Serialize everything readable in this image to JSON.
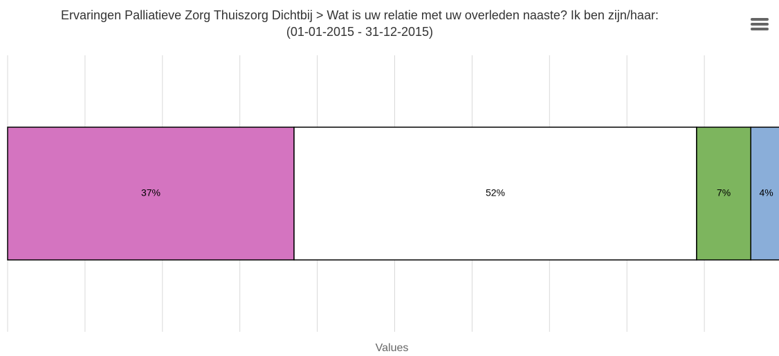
{
  "chart_data": {
    "type": "stacked_percent_bar",
    "title": "Ervaringen Palliatieve Zorg Thuiszorg Dichtbij > Wat is uw relatie met uw overleden naaste? Ik ben zijn/haar:",
    "subtitle": "(01-01-2015 - 31-12-2015)",
    "y_label": "Values",
    "categories": [
      null
    ],
    "series": [
      {
        "color": "#d474c0",
        "values": [
          37
        ],
        "value_labels": [
          "37%"
        ]
      },
      {
        "color": "#ffffff",
        "values": [
          52
        ],
        "value_labels": [
          "52%"
        ]
      },
      {
        "color": "#7db55e",
        "values": [
          7
        ],
        "value_labels": [
          "7%"
        ]
      },
      {
        "color": "#8aaed9",
        "values": [
          4
        ],
        "value_labels": [
          "4%"
        ]
      }
    ],
    "ylim": [
      0,
      100
    ],
    "yticks": [
      0,
      10,
      20,
      30,
      40,
      50,
      60,
      70,
      80,
      90,
      100
    ],
    "grid": true
  }
}
